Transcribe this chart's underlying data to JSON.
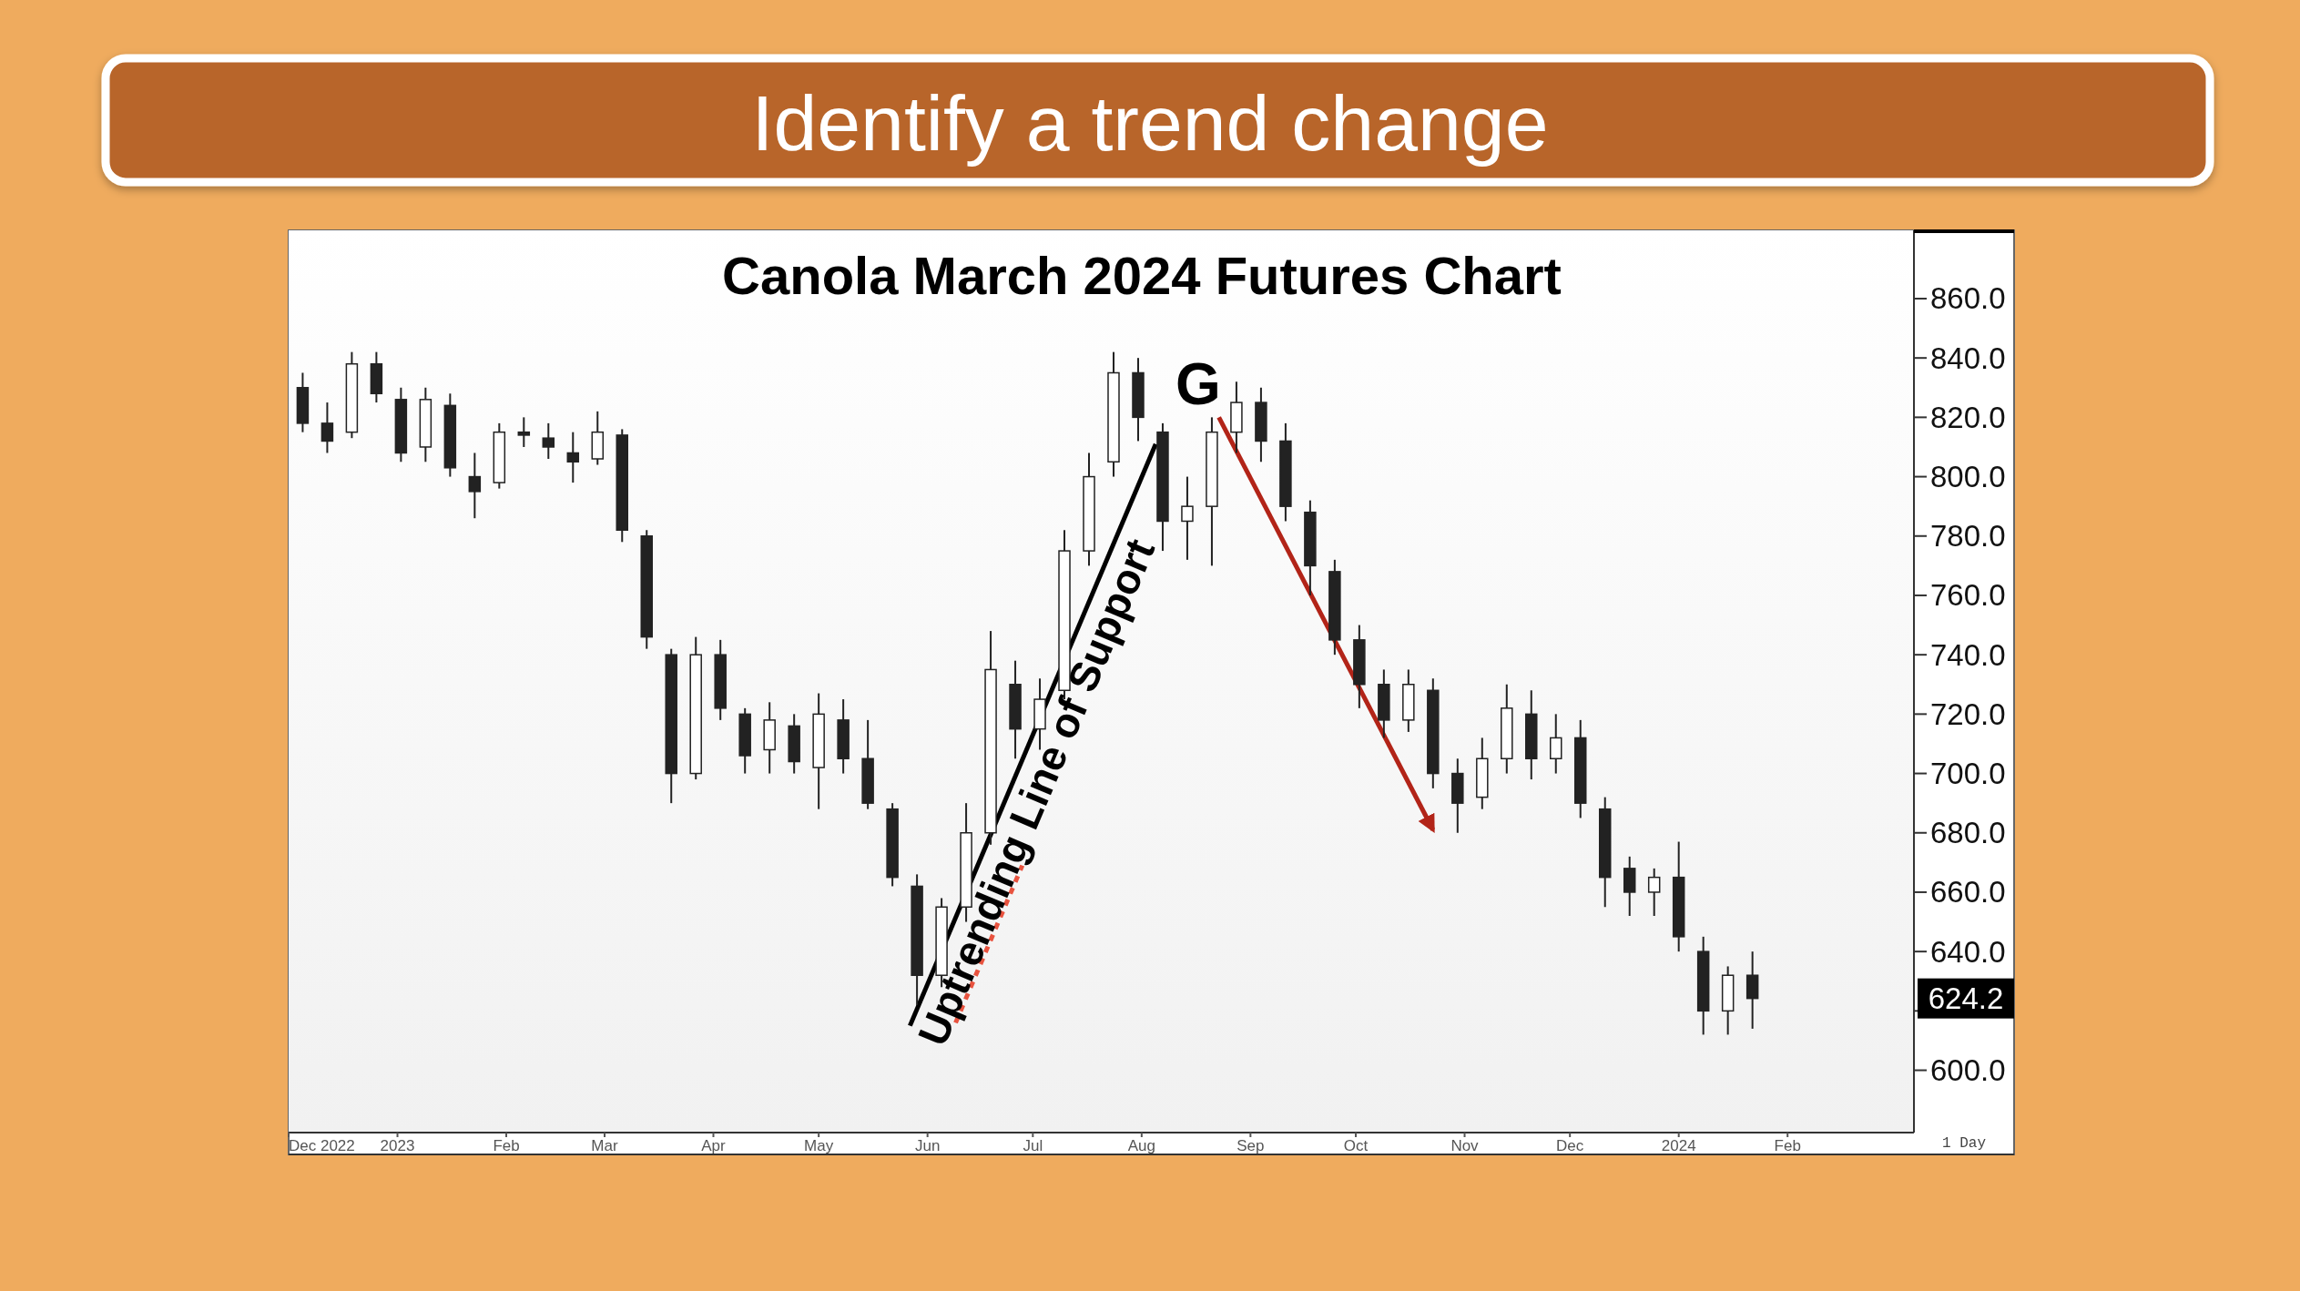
{
  "chart_data": {
    "type": "candlestick",
    "title": "Identify a trend change",
    "subtitle": "Canola March 2024 Futures Chart",
    "x": [
      "2022-12-05",
      "2022-12-12",
      "2022-12-19",
      "2022-12-26",
      "2023-01-02",
      "2023-01-09",
      "2023-01-16",
      "2023-01-23",
      "2023-01-30",
      "2023-02-06",
      "2023-02-13",
      "2023-02-20",
      "2023-02-27",
      "2023-03-06",
      "2023-03-13",
      "2023-03-20",
      "2023-03-27",
      "2023-04-03",
      "2023-04-10",
      "2023-04-17",
      "2023-04-24",
      "2023-05-01",
      "2023-05-08",
      "2023-05-15",
      "2023-05-22",
      "2023-05-29",
      "2023-06-05",
      "2023-06-12",
      "2023-06-19",
      "2023-06-26",
      "2023-07-03",
      "2023-07-10",
      "2023-07-17",
      "2023-07-24",
      "2023-07-31",
      "2023-08-07",
      "2023-08-14",
      "2023-08-21",
      "2023-08-28",
      "2023-09-04",
      "2023-09-11",
      "2023-09-18",
      "2023-09-25",
      "2023-10-02",
      "2023-10-09",
      "2023-10-16",
      "2023-10-23",
      "2023-10-30",
      "2023-11-06",
      "2023-11-13",
      "2023-11-20",
      "2023-11-27",
      "2023-12-04",
      "2023-12-11",
      "2023-12-18",
      "2023-12-25",
      "2024-01-01",
      "2024-01-08",
      "2024-01-15",
      "2024-01-22"
    ],
    "ohlc": [
      [
        830,
        835,
        815,
        818
      ],
      [
        818,
        825,
        808,
        812
      ],
      [
        815,
        842,
        813,
        838
      ],
      [
        838,
        842,
        825,
        828
      ],
      [
        826,
        830,
        805,
        808
      ],
      [
        810,
        830,
        805,
        826
      ],
      [
        824,
        828,
        800,
        803
      ],
      [
        800,
        808,
        786,
        795
      ],
      [
        798,
        818,
        796,
        815
      ],
      [
        815,
        820,
        810,
        814
      ],
      [
        813,
        818,
        806,
        810
      ],
      [
        808,
        815,
        798,
        805
      ],
      [
        806,
        822,
        804,
        815
      ],
      [
        814,
        816,
        778,
        782
      ],
      [
        780,
        782,
        742,
        746
      ],
      [
        740,
        742,
        690,
        700
      ],
      [
        700,
        746,
        698,
        740
      ],
      [
        740,
        745,
        718,
        722
      ],
      [
        720,
        722,
        700,
        706
      ],
      [
        708,
        724,
        700,
        718
      ],
      [
        716,
        720,
        700,
        704
      ],
      [
        702,
        727,
        688,
        720
      ],
      [
        718,
        725,
        700,
        705
      ],
      [
        705,
        718,
        688,
        690
      ],
      [
        688,
        690,
        662,
        665
      ],
      [
        662,
        666,
        622,
        632
      ],
      [
        632,
        658,
        628,
        655
      ],
      [
        655,
        690,
        650,
        680
      ],
      [
        680,
        748,
        676,
        735
      ],
      [
        730,
        738,
        705,
        715
      ],
      [
        715,
        732,
        708,
        725
      ],
      [
        728,
        782,
        725,
        775
      ],
      [
        775,
        808,
        770,
        800
      ],
      [
        805,
        842,
        800,
        835
      ],
      [
        835,
        840,
        812,
        820
      ],
      [
        815,
        818,
        775,
        785
      ],
      [
        785,
        800,
        772,
        790
      ],
      [
        790,
        820,
        770,
        815
      ],
      [
        815,
        832,
        808,
        825
      ],
      [
        825,
        830,
        805,
        812
      ],
      [
        812,
        818,
        785,
        790
      ],
      [
        788,
        792,
        760,
        770
      ],
      [
        768,
        772,
        740,
        745
      ],
      [
        745,
        750,
        722,
        730
      ],
      [
        730,
        735,
        712,
        718
      ],
      [
        718,
        735,
        714,
        730
      ],
      [
        728,
        732,
        695,
        700
      ],
      [
        700,
        705,
        680,
        690
      ],
      [
        692,
        712,
        688,
        705
      ],
      [
        705,
        730,
        700,
        722
      ],
      [
        720,
        728,
        698,
        705
      ],
      [
        705,
        720,
        700,
        712
      ],
      [
        712,
        718,
        685,
        690
      ],
      [
        688,
        692,
        655,
        665
      ],
      [
        668,
        672,
        652,
        660
      ],
      [
        660,
        668,
        652,
        665
      ],
      [
        665,
        677,
        640,
        645
      ],
      [
        640,
        645,
        612,
        620
      ],
      [
        620,
        635,
        612,
        632
      ],
      [
        632,
        640,
        614,
        624.2
      ]
    ],
    "series": [
      {
        "type": "line",
        "color": "#000000",
        "x": [
          "2023-05-27",
          "2023-08-05"
        ],
        "values": [
          615,
          811
        ]
      },
      {
        "type": "line",
        "color": "#b22418",
        "x": [
          "2023-08-23",
          "2023-10-23"
        ],
        "values": [
          820,
          681
        ]
      },
      {
        "type": "line",
        "color": "#e8533f",
        "line_style": "dotted",
        "x": [
          "2023-06-09",
          "2023-06-28"
        ],
        "values": [
          616,
          669
        ]
      }
    ],
    "xlim": [
      "2022-12-01",
      "2024-03-08"
    ],
    "xticks": [
      {
        "value": "2022-12-01",
        "label": "Dec 2022"
      },
      {
        "value": "2023-01-01",
        "label": "2023"
      },
      {
        "value": "2023-02-01",
        "label": "Feb"
      },
      {
        "value": "2023-03-01",
        "label": "Mar"
      },
      {
        "value": "2023-04-01",
        "label": "Apr"
      },
      {
        "value": "2023-05-01",
        "label": "May"
      },
      {
        "value": "2023-06-01",
        "label": "Jun"
      },
      {
        "value": "2023-07-01",
        "label": "Jul"
      },
      {
        "value": "2023-08-01",
        "label": "Aug"
      },
      {
        "value": "2023-09-01",
        "label": "Sep"
      },
      {
        "value": "2023-10-01",
        "label": "Oct"
      },
      {
        "value": "2023-11-01",
        "label": "Nov"
      },
      {
        "value": "2023-12-01",
        "label": "Dec"
      },
      {
        "value": "2024-01-01",
        "label": "2024"
      },
      {
        "value": "2024-02-01",
        "label": "Feb"
      }
    ],
    "ylim": [
      579,
      883
    ],
    "yticks": [
      {
        "value": 600,
        "label": "600.0"
      },
      {
        "value": 620,
        "label": null
      },
      {
        "value": 640,
        "label": "640.0"
      },
      {
        "value": 660,
        "label": "660.0"
      },
      {
        "value": 680,
        "label": "680.0"
      },
      {
        "value": 700,
        "label": "700.0"
      },
      {
        "value": 720,
        "label": "720.0"
      },
      {
        "value": 740,
        "label": "740.0"
      },
      {
        "value": 760,
        "label": "760.0"
      },
      {
        "value": 780,
        "label": "780.0"
      },
      {
        "value": 800,
        "label": "800.0"
      },
      {
        "value": 820,
        "label": "820.0"
      },
      {
        "value": 840,
        "label": "840.0"
      },
      {
        "value": 860,
        "label": "860.0"
      }
    ],
    "annotations": [
      "G",
      "Uptrending Line of Support",
      "624.2",
      "1 Day"
    ],
    "grid": false
  }
}
